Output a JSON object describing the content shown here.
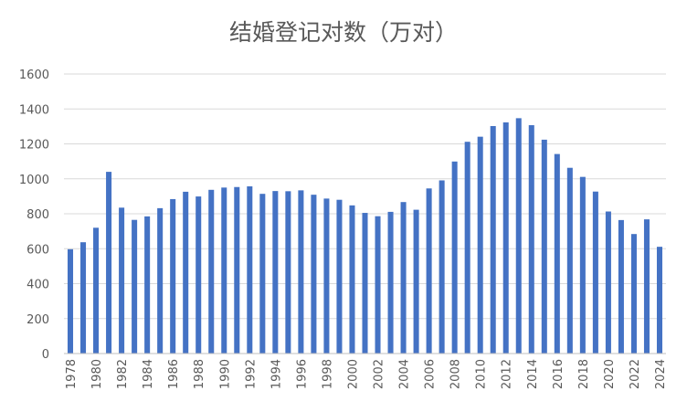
{
  "chart_data": {
    "type": "bar",
    "title": "结婚登记对数（万对）",
    "xlabel": "",
    "ylabel": "",
    "ylim": [
      0,
      1600
    ],
    "yticks": [
      0,
      200,
      400,
      600,
      800,
      1000,
      1200,
      1400,
      1600
    ],
    "grid": true,
    "legend": "none",
    "bar_color": "#4472c4",
    "categories": [
      "1978",
      "1979",
      "1980",
      "1981",
      "1982",
      "1983",
      "1984",
      "1985",
      "1986",
      "1987",
      "1988",
      "1989",
      "1990",
      "1991",
      "1992",
      "1993",
      "1994",
      "1995",
      "1996",
      "1997",
      "1998",
      "1999",
      "2000",
      "2001",
      "2002",
      "2003",
      "2004",
      "2005",
      "2006",
      "2007",
      "2008",
      "2009",
      "2010",
      "2011",
      "2012",
      "2013",
      "2014",
      "2015",
      "2016",
      "2017",
      "2018",
      "2019",
      "2020",
      "2021",
      "2022",
      "2023",
      "2024"
    ],
    "xtick_labels": [
      "1978",
      "1980",
      "1982",
      "1984",
      "1986",
      "1988",
      "1990",
      "1992",
      "1994",
      "1996",
      "1998",
      "2000",
      "2002",
      "2004",
      "2006",
      "2008",
      "2010",
      "2012",
      "2014",
      "2016",
      "2018",
      "2020",
      "2022",
      "2024"
    ],
    "values": [
      597,
      637,
      720,
      1040,
      835,
      765,
      785,
      832,
      884,
      926,
      899,
      937,
      950,
      953,
      957,
      914,
      930,
      929,
      934,
      909,
      887,
      880,
      848,
      805,
      786,
      811,
      867,
      823,
      945,
      991,
      1099,
      1212,
      1241,
      1302,
      1323,
      1347,
      1307,
      1224,
      1142,
      1063,
      1011,
      927,
      813,
      764,
      684,
      768,
      611
    ]
  }
}
